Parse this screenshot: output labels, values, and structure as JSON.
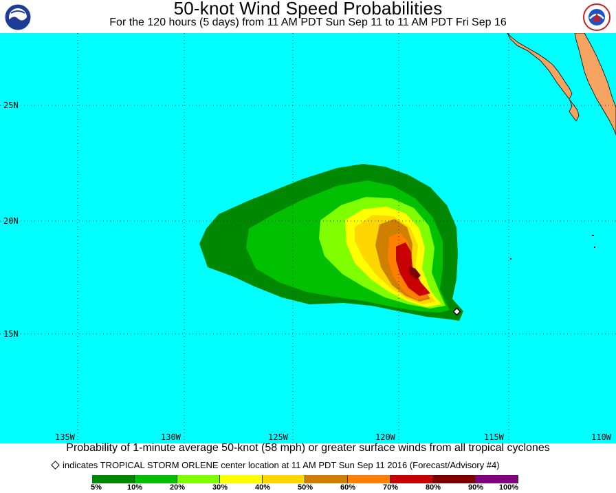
{
  "header": {
    "title": "50-knot Wind Speed Probabilities",
    "subtitle": "For the 120 hours (5 days) from 11 AM PDT Sun Sep 11 to 11 AM PDT Fri Sep 16",
    "left_logo": "noaa-logo",
    "right_logo": "national-weather-service-logo"
  },
  "map": {
    "ocean_color": "#00ffff",
    "land_color": "#f4a460",
    "latitude_labels": [
      "25N",
      "20N",
      "15N"
    ],
    "longitude_labels": [
      "135W",
      "130W",
      "125W",
      "120W",
      "115W",
      "110W"
    ],
    "storm_center": {
      "lat": 15.9,
      "lon": -117.0,
      "symbol": "diamond"
    }
  },
  "footer": {
    "caption": "Probability of 1-minute average 50-knot (58 mph) or greater surface winds from all tropical cyclones",
    "marker_note": "indicates TROPICAL STORM ORLENE center location at 11 AM PDT Sun Sep 11 2016 (Forecast/Advisory #4)"
  },
  "legend": {
    "colors": [
      "#008800",
      "#00c000",
      "#80ff00",
      "#ffff00",
      "#ffd700",
      "#d08000",
      "#ff8000",
      "#c80000",
      "#800000",
      "#800080"
    ],
    "labels": [
      "5%",
      "10%",
      "20%",
      "30%",
      "40%",
      "50%",
      "60%",
      "70%",
      "80%",
      "90%",
      "100%"
    ]
  }
}
